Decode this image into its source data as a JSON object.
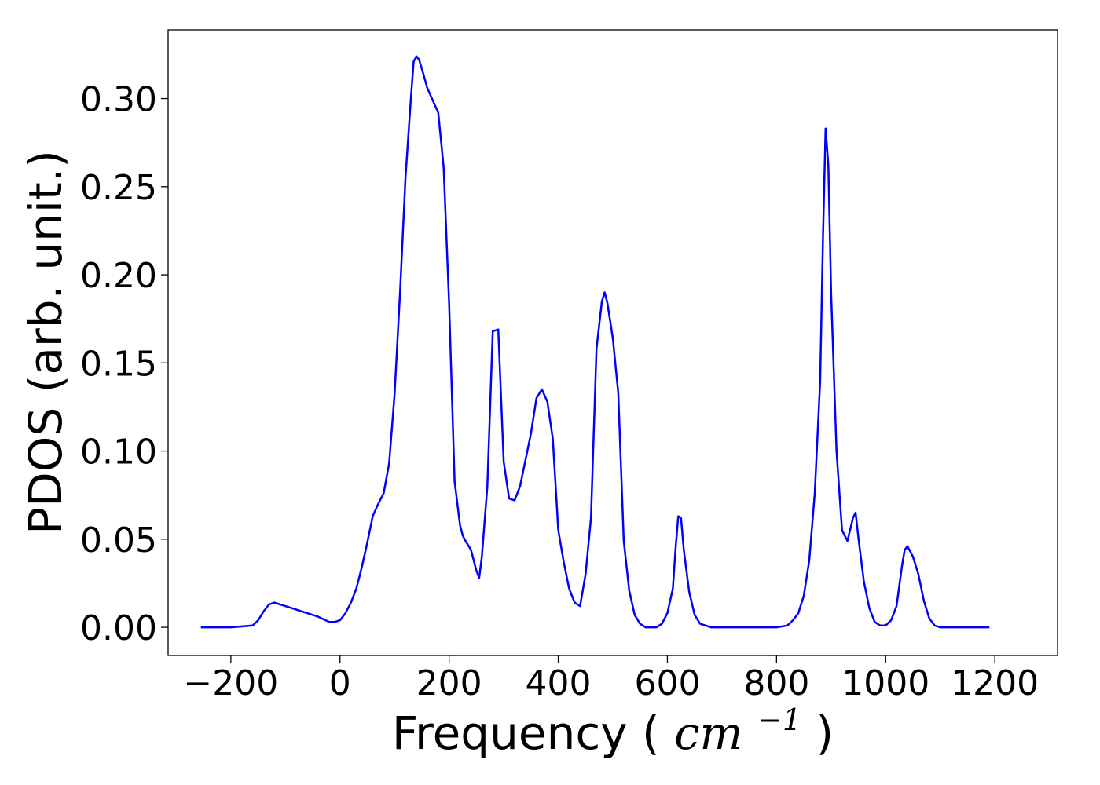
{
  "chart_data": {
    "type": "line",
    "title": "",
    "xlabel": "Frequency",
    "xlabel_unit": "cm",
    "xlabel_unit_exp": "−1",
    "ylabel": "PDOS (arb. unit.)",
    "xlim": [
      -315,
      1315
    ],
    "ylim": [
      -0.016,
      0.339
    ],
    "xticks": [
      -200,
      0,
      200,
      400,
      600,
      800,
      1000,
      1200
    ],
    "xtick_labels": [
      "−200",
      "0",
      "200",
      "400",
      "600",
      "800",
      "1000",
      "1200"
    ],
    "yticks": [
      0.0,
      0.05,
      0.1,
      0.15,
      0.2,
      0.25,
      0.3
    ],
    "ytick_labels": [
      "0.00",
      "0.05",
      "0.10",
      "0.15",
      "0.20",
      "0.25",
      "0.30"
    ],
    "grid": false,
    "legend": false,
    "series": [
      {
        "color": "#0000ff",
        "x": [
          -255,
          -200,
          -160,
          -150,
          -140,
          -130,
          -120,
          -110,
          -100,
          -80,
          -60,
          -40,
          -20,
          -10,
          0,
          10,
          20,
          30,
          40,
          50,
          60,
          70,
          80,
          90,
          100,
          110,
          120,
          130,
          135,
          140,
          145,
          150,
          160,
          170,
          180,
          190,
          200,
          210,
          220,
          225,
          230,
          240,
          250,
          255,
          260,
          270,
          280,
          290,
          300,
          310,
          320,
          330,
          340,
          350,
          360,
          370,
          380,
          390,
          400,
          410,
          420,
          430,
          440,
          450,
          460,
          470,
          480,
          485,
          490,
          500,
          510,
          520,
          530,
          540,
          550,
          560,
          570,
          580,
          590,
          600,
          610,
          615,
          620,
          625,
          630,
          640,
          650,
          660,
          670,
          680,
          700,
          750,
          800,
          820,
          830,
          840,
          850,
          860,
          870,
          880,
          885,
          890,
          895,
          900,
          910,
          920,
          930,
          940,
          945,
          950,
          960,
          970,
          980,
          990,
          1000,
          1010,
          1020,
          1030,
          1035,
          1040,
          1050,
          1060,
          1070,
          1080,
          1090,
          1100,
          1150,
          1190
        ],
        "y": [
          0.0,
          0.0,
          0.001,
          0.004,
          0.009,
          0.013,
          0.014,
          0.013,
          0.012,
          0.01,
          0.008,
          0.006,
          0.003,
          0.003,
          0.004,
          0.008,
          0.014,
          0.022,
          0.034,
          0.048,
          0.063,
          0.07,
          0.076,
          0.093,
          0.132,
          0.19,
          0.255,
          0.3,
          0.321,
          0.324,
          0.322,
          0.317,
          0.306,
          0.299,
          0.292,
          0.261,
          0.183,
          0.083,
          0.058,
          0.052,
          0.049,
          0.044,
          0.032,
          0.028,
          0.04,
          0.08,
          0.168,
          0.169,
          0.094,
          0.073,
          0.072,
          0.08,
          0.095,
          0.11,
          0.13,
          0.135,
          0.128,
          0.107,
          0.055,
          0.037,
          0.022,
          0.014,
          0.012,
          0.03,
          0.062,
          0.158,
          0.185,
          0.19,
          0.184,
          0.164,
          0.133,
          0.049,
          0.021,
          0.007,
          0.002,
          0.0,
          0.0,
          0.0,
          0.002,
          0.008,
          0.022,
          0.045,
          0.063,
          0.062,
          0.044,
          0.02,
          0.007,
          0.002,
          0.001,
          0.0,
          0.0,
          0.0,
          0.0,
          0.001,
          0.004,
          0.008,
          0.018,
          0.038,
          0.076,
          0.14,
          0.22,
          0.283,
          0.262,
          0.19,
          0.1,
          0.055,
          0.049,
          0.062,
          0.065,
          0.051,
          0.026,
          0.011,
          0.003,
          0.001,
          0.001,
          0.004,
          0.012,
          0.035,
          0.044,
          0.046,
          0.04,
          0.03,
          0.015,
          0.005,
          0.001,
          0.0,
          0.0,
          0.0
        ]
      }
    ]
  }
}
